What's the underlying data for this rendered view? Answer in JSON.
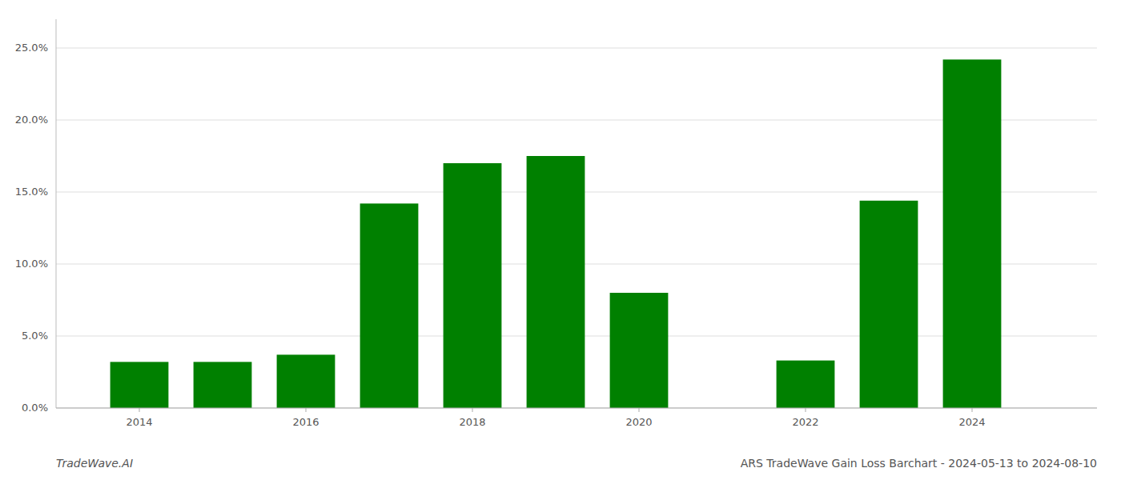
{
  "chart_data": {
    "type": "bar",
    "title": "ARS TradeWave Gain Loss Barchart - 2024-05-13 to 2024-08-10",
    "annotations": [
      "TradeWave.AI"
    ],
    "x": [
      2014,
      2015,
      2016,
      2017,
      2018,
      2019,
      2020,
      2022,
      2023,
      2024
    ],
    "values": [
      0.032,
      0.032,
      0.037,
      0.142,
      0.17,
      0.175,
      0.08,
      0.033,
      0.144,
      0.242
    ],
    "color": "#008000",
    "xlim": [
      2013.0,
      2025.5
    ],
    "xticks": [
      2014,
      2016,
      2018,
      2020,
      2022,
      2024
    ],
    "ylim": [
      0,
      0.27
    ],
    "yticks": [
      {
        "value": 0.0,
        "label": "0.0%"
      },
      {
        "value": 0.05,
        "label": "5.0%"
      },
      {
        "value": 0.1,
        "label": "10.0%"
      },
      {
        "value": 0.15,
        "label": "15.0%"
      },
      {
        "value": 0.2,
        "label": "20.0%"
      },
      {
        "value": 0.25,
        "label": "25.0%"
      }
    ],
    "grid": true
  }
}
